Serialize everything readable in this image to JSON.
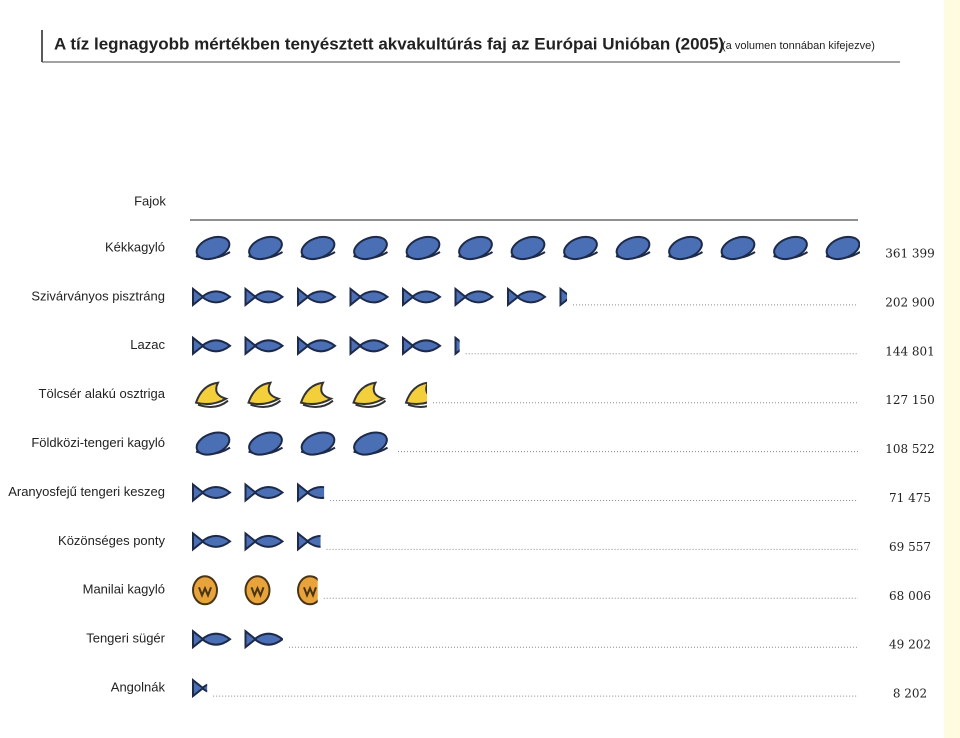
{
  "chart_data": {
    "type": "pictogram",
    "title": "A tíz legnagyobb mértékben tenyésztett akvakultúrás faj az Európai Unióban (2005)",
    "subtitle": "(a volumen tonnában kifejezve)",
    "y_label": "Fajok",
    "categories": [
      "Kékkagyló",
      "Szivárványos pisztráng",
      "Lazac",
      "Tölcsér alakú osztriga",
      "Földközi-tengeri kagyló",
      "Aranyosfejű tengeri keszeg",
      "Közönséges ponty",
      "Manilai kagyló",
      "Tengeri sügér",
      "Angolnák"
    ],
    "values": [
      361399,
      202900,
      144801,
      127150,
      108522,
      71475,
      69557,
      68006,
      49202,
      8202
    ],
    "value_labels": [
      "361 399",
      "202 900",
      "144 801",
      "127 150",
      "108 522",
      "71 475",
      "69 557",
      "68 006",
      "49 202",
      "8 202"
    ],
    "icons": [
      "mussel",
      "fish",
      "fish",
      "oyster",
      "mussel",
      "fish",
      "fish",
      "clam",
      "fish",
      "fish"
    ],
    "colors": {
      "mussel": "#4a6fb5",
      "fish": "#4a6fb5",
      "oyster": "#f2cf3b",
      "clam": "#e8a33a"
    }
  }
}
